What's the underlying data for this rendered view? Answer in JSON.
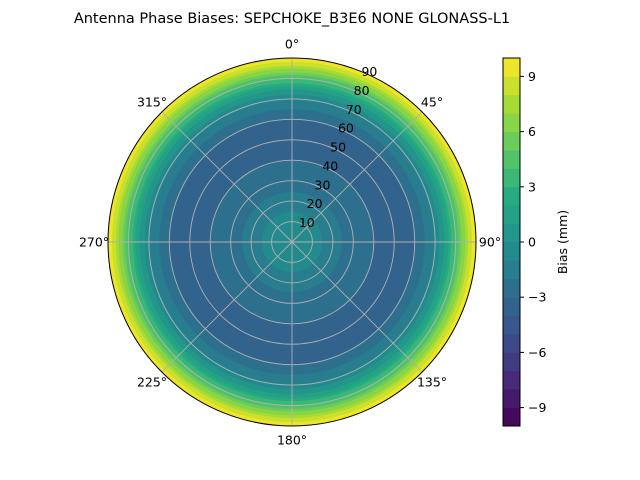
{
  "chart_data": {
    "type": "polar_contour",
    "title": "Antenna Phase Biases: SEPCHOKE_B3E6   NONE GLONASS-L1",
    "angular_ticks": [
      {
        "deg": 0,
        "label": "0°"
      },
      {
        "deg": 45,
        "label": "45°"
      },
      {
        "deg": 90,
        "label": "90°"
      },
      {
        "deg": 135,
        "label": "135°"
      },
      {
        "deg": 180,
        "label": "180°"
      },
      {
        "deg": 225,
        "label": "225°"
      },
      {
        "deg": 270,
        "label": "270°"
      },
      {
        "deg": 315,
        "label": "315°"
      }
    ],
    "radial_ticks": [
      "10",
      "20",
      "30",
      "40",
      "50",
      "60",
      "70",
      "80",
      "90"
    ],
    "radial_values": [
      10,
      20,
      30,
      40,
      50,
      60,
      70,
      80,
      90
    ],
    "rlim": [
      0,
      90
    ],
    "direction": "clockwise",
    "zero_location": "top",
    "grid": true,
    "colorbar": {
      "label": "Bias (mm)",
      "range": [
        -10,
        10
      ],
      "levels": 20,
      "ticks": [
        "−9",
        "−6",
        "−3",
        "0",
        "3",
        "6",
        "9"
      ],
      "tick_values": [
        -9,
        -6,
        -3,
        0,
        3,
        6,
        9
      ],
      "colormap": "viridis"
    },
    "bias_profile_by_zenith": {
      "zenith_deg": [
        0,
        10,
        20,
        30,
        40,
        50,
        60,
        70,
        75,
        80,
        85,
        90
      ],
      "bias_mm": [
        0,
        -0.5,
        -1.5,
        -2.5,
        -3,
        -3.5,
        -3,
        -1,
        1,
        4,
        7,
        10
      ]
    },
    "colors": {
      "low": "#440154",
      "mid": "#21918c",
      "high": "#fde725",
      "grid": "#b0b0b0"
    }
  }
}
